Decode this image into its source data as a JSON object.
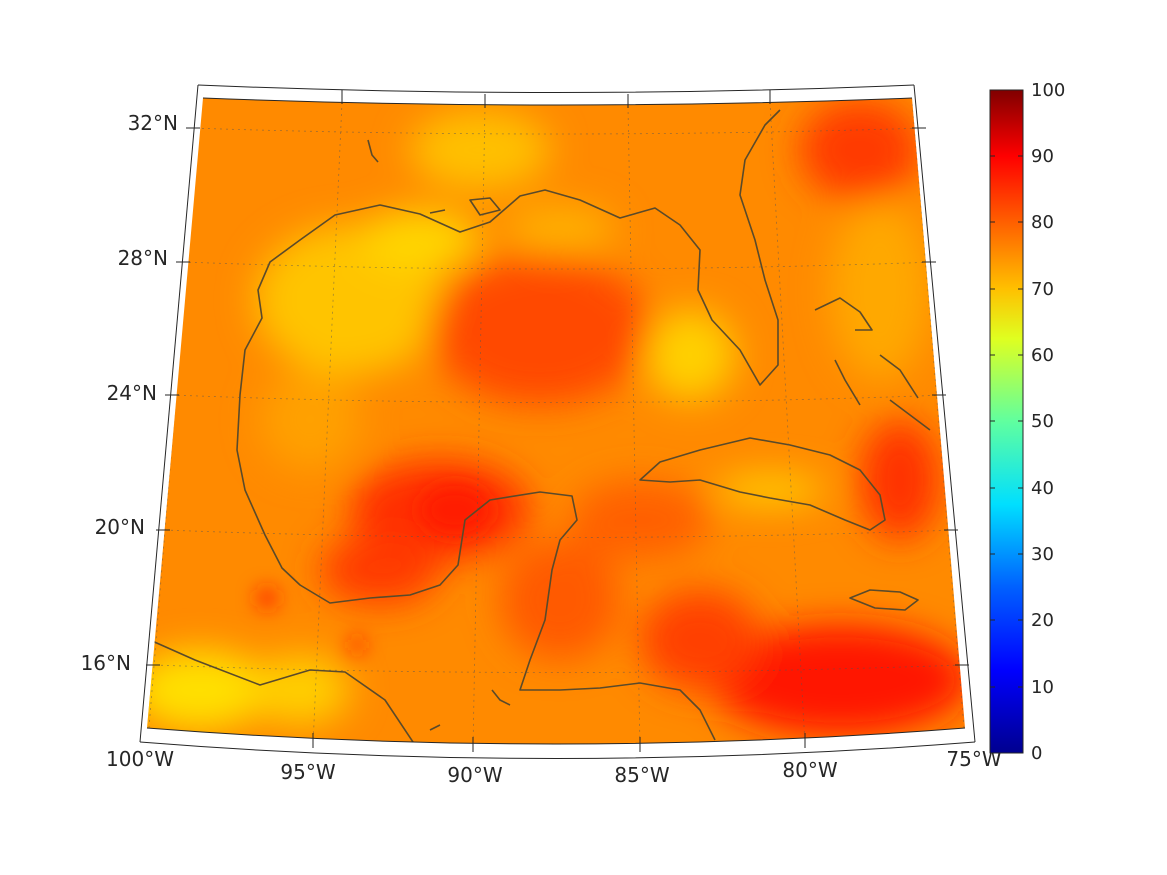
{
  "map": {
    "lon_labels": [
      "100°W",
      "95°W",
      "90°W",
      "85°W",
      "80°W",
      "75°W"
    ],
    "lat_labels": [
      "32°N",
      "28°N",
      "24°N",
      "20°N",
      "16°N"
    ]
  },
  "colorbar": {
    "min": 0,
    "max": 100,
    "tick_labels": [
      "100",
      "90",
      "80",
      "70",
      "60",
      "50",
      "40",
      "30",
      "20",
      "10",
      "0"
    ],
    "colormap": "jet",
    "colors": [
      "#00008f",
      "#0000ff",
      "#0080ff",
      "#00ffff",
      "#80ff80",
      "#ffff00",
      "#ff8000",
      "#ff0000",
      "#800000"
    ]
  },
  "field_colors": {
    "base": "#ff8c00",
    "low": "#ffd200",
    "high": "#ff2a00",
    "coast": "#5a4a2a"
  }
}
